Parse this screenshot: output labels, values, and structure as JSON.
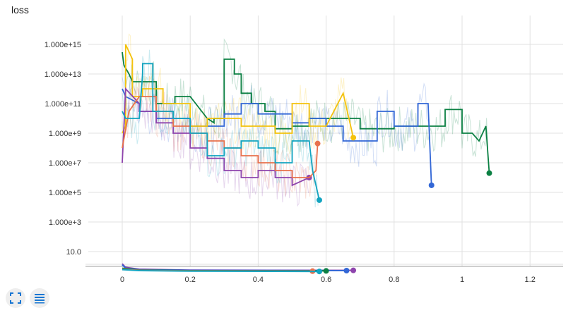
{
  "chart_data": {
    "type": "line",
    "title": "loss",
    "xlabel": "",
    "ylabel": "",
    "y_scale": "log",
    "grid": true,
    "xlim": [
      -0.1,
      1.3
    ],
    "ylim": [
      1,
      1e+16
    ],
    "x_ticks": [
      "0",
      "0.2",
      "0.4",
      "0.6",
      "0.8",
      "1",
      "1.2"
    ],
    "x_tick_values": [
      0,
      0.2,
      0.4,
      0.6,
      0.8,
      1.0,
      1.2
    ],
    "y_ticks": [
      "1.000e+15",
      "1.000e+13",
      "1.000e+11",
      "1.000e+9",
      "1.000e+7",
      "1.000e+5",
      "1.000e+3",
      "10.0"
    ],
    "y_tick_values": [
      1000000000000000.0,
      10000000000000.0,
      100000000000.0,
      1000000000.0,
      10000000.0,
      100000.0,
      1000.0,
      10
    ],
    "series": [
      {
        "color": "#0b8043",
        "x": [
          0,
          0.005,
          0.02,
          0.03,
          0.1,
          0.1,
          0.155,
          0.155,
          0.2,
          0.25,
          0.27,
          0.27,
          0.3,
          0.3,
          0.33,
          0.33,
          0.35,
          0.35,
          0.38,
          0.38,
          0.42,
          0.42,
          0.45,
          0.45,
          0.5,
          0.5,
          0.55,
          0.55,
          0.7,
          0.7,
          0.8,
          0.8,
          0.95,
          0.95,
          1.0,
          1.0,
          1.03,
          1.05,
          1.07,
          1.08
        ],
        "y": [
          300000000000000.0,
          40000000000000.0,
          10000000000000.0,
          3000000000000.0,
          3000000000000.0,
          100000000000.0,
          100000000000.0,
          300000000000.0,
          300000000000.0,
          10000000000.0,
          5000000000.0,
          10000000000.0,
          10000000000.0,
          100000000000000.0,
          100000000000000.0,
          10000000000000.0,
          10000000000000.0,
          500000000000.0,
          500000000000.0,
          100000000000.0,
          100000000000.0,
          30000000000.0,
          30000000000.0,
          2000000000.0,
          2000000000.0,
          3000000000.0,
          3000000000.0,
          10000000000.0,
          10000000000.0,
          2000000000.0,
          2000000000.0,
          3000000000.0,
          3000000000.0,
          40000000000.0,
          40000000000.0,
          1000000000.0,
          1000000000.0,
          300000000.0,
          3000000000.0,
          2000000.0
        ]
      },
      {
        "color": "#3367d6",
        "x": [
          0,
          0.01,
          0.05,
          0.05,
          0.1,
          0.1,
          0.2,
          0.2,
          0.3,
          0.3,
          0.35,
          0.35,
          0.4,
          0.4,
          0.5,
          0.5,
          0.55,
          0.55,
          0.6,
          0.6,
          0.65,
          0.65,
          0.75,
          0.75,
          0.8,
          0.8,
          0.87,
          0.87,
          0.9,
          0.91
        ],
        "y": [
          1000000000000.0,
          300000000000.0,
          100000000000.0,
          30000000000.0,
          30000000000.0,
          10000000000.0,
          10000000000.0,
          3000000000.0,
          3000000000.0,
          20000000000.0,
          20000000000.0,
          100000000000.0,
          100000000000.0,
          20000000000.0,
          20000000000.0,
          5000000000.0,
          5000000000.0,
          10000000000.0,
          10000000000.0,
          3000000000.0,
          3000000000.0,
          300000000.0,
          300000000.0,
          30000000000.0,
          30000000000.0,
          3000000000.0,
          3000000000.0,
          100000000000.0,
          100000000000.0,
          300000.0
        ]
      },
      {
        "color": "#f4c20d",
        "x": [
          0,
          0.01,
          0.01,
          0.03,
          0.03,
          0.06,
          0.06,
          0.12,
          0.12,
          0.2,
          0.2,
          0.25,
          0.25,
          0.35,
          0.35,
          0.45,
          0.45,
          0.5,
          0.5,
          0.55,
          0.55,
          0.6,
          0.65,
          0.68
        ],
        "y": [
          1000000000.0,
          3000000000.0,
          1000000000000000.0,
          100000000000000.0,
          300000000000.0,
          300000000000.0,
          1000000000000.0,
          1000000000000.0,
          100000000000.0,
          100000000000.0,
          3000000000.0,
          3000000000.0,
          10000000000.0,
          10000000000.0,
          3000000000.0,
          3000000000.0,
          1000000000.0,
          1000000000.0,
          100000000000.0,
          100000000000.0,
          3000000000.0,
          3000000000.0,
          500000000000.0,
          500000000.0
        ]
      },
      {
        "color": "#8e44ad",
        "x": [
          0,
          0.01,
          0.05,
          0.05,
          0.1,
          0.1,
          0.15,
          0.15,
          0.2,
          0.2,
          0.25,
          0.25,
          0.3,
          0.3,
          0.35,
          0.35,
          0.4,
          0.4,
          0.45,
          0.45,
          0.5,
          0.5,
          0.55
        ],
        "y": [
          10000000.0,
          1000000000000.0,
          100000000000.0,
          30000000000.0,
          30000000000.0,
          5000000000.0,
          5000000000.0,
          1000000000.0,
          1000000000.0,
          100000000.0,
          100000000.0,
          20000000.0,
          20000000.0,
          3000000.0,
          3000000.0,
          1000000.0,
          1000000.0,
          3000000.0,
          3000000.0,
          1000000.0,
          1000000.0,
          300000.0,
          1000000.0
        ]
      },
      {
        "color": "#e8714c",
        "x": [
          0,
          0.02,
          0.05,
          0.1,
          0.1,
          0.15,
          0.15,
          0.2,
          0.2,
          0.25,
          0.25,
          0.3,
          0.3,
          0.35,
          0.35,
          0.4,
          0.4,
          0.45,
          0.45,
          0.5,
          0.5,
          0.55,
          0.57,
          0.575
        ],
        "y": [
          100000000.0,
          30000000000.0,
          300000000000.0,
          300000000000.0,
          30000000000.0,
          30000000000.0,
          3000000000.0,
          3000000000.0,
          1000000000.0,
          1000000000.0,
          300000000.0,
          300000000.0,
          100000000.0,
          100000000.0,
          30000000.0,
          30000000.0,
          10000000.0,
          10000000.0,
          3000000.0,
          3000000.0,
          1000000.0,
          1000000.0,
          3000000.0,
          200000000.0
        ]
      },
      {
        "color": "#12a4c0",
        "x": [
          0,
          0.01,
          0.05,
          0.06,
          0.06,
          0.09,
          0.09,
          0.15,
          0.15,
          0.2,
          0.2,
          0.25,
          0.25,
          0.3,
          0.3,
          0.35,
          0.35,
          0.4,
          0.4,
          0.45,
          0.45,
          0.5,
          0.5,
          0.55,
          0.56,
          0.58
        ],
        "y": [
          30000000000.0,
          10000000000.0,
          10000000000.0,
          10000000000000.0,
          50000000000000.0,
          50000000000000.0,
          30000000000.0,
          30000000000.0,
          10000000000.0,
          10000000000.0,
          1000000000.0,
          1000000000.0,
          30000000.0,
          30000000.0,
          100000000.0,
          100000000.0,
          300000000.0,
          300000000.0,
          100000000.0,
          100000000.0,
          10000000.0,
          10000000.0,
          300000000.0,
          300000000.0,
          3000000.0,
          30000.0
        ]
      }
    ],
    "lower_series": [
      {
        "color": "#8e44ad",
        "x": [
          0,
          0.01,
          0.05,
          0.2,
          0.68
        ],
        "y": [
          7,
          4,
          3,
          2.6,
          2.5
        ]
      },
      {
        "color": "#3367d6",
        "x": [
          0,
          0.01,
          0.05,
          0.2,
          0.66
        ],
        "y": [
          6,
          3.5,
          2.8,
          2.5,
          2.4
        ]
      },
      {
        "color": "#0b8043",
        "x": [
          0,
          0.05,
          0.2,
          0.6
        ],
        "y": [
          3.5,
          2.6,
          2.4,
          2.3
        ]
      },
      {
        "color": "#e8714c",
        "x": [
          0,
          0.05,
          0.2,
          0.56
        ],
        "y": [
          3,
          2.5,
          2.3,
          2.2
        ]
      },
      {
        "color": "#12a4c0",
        "x": [
          0,
          0.05,
          0.2,
          0.58
        ],
        "y": [
          2.8,
          2.4,
          2.2,
          2.1
        ]
      }
    ]
  },
  "toolbar": {
    "fullscreen_icon": "fullscreen-icon",
    "list_icon": "list-icon",
    "accent": "#1976d2"
  }
}
